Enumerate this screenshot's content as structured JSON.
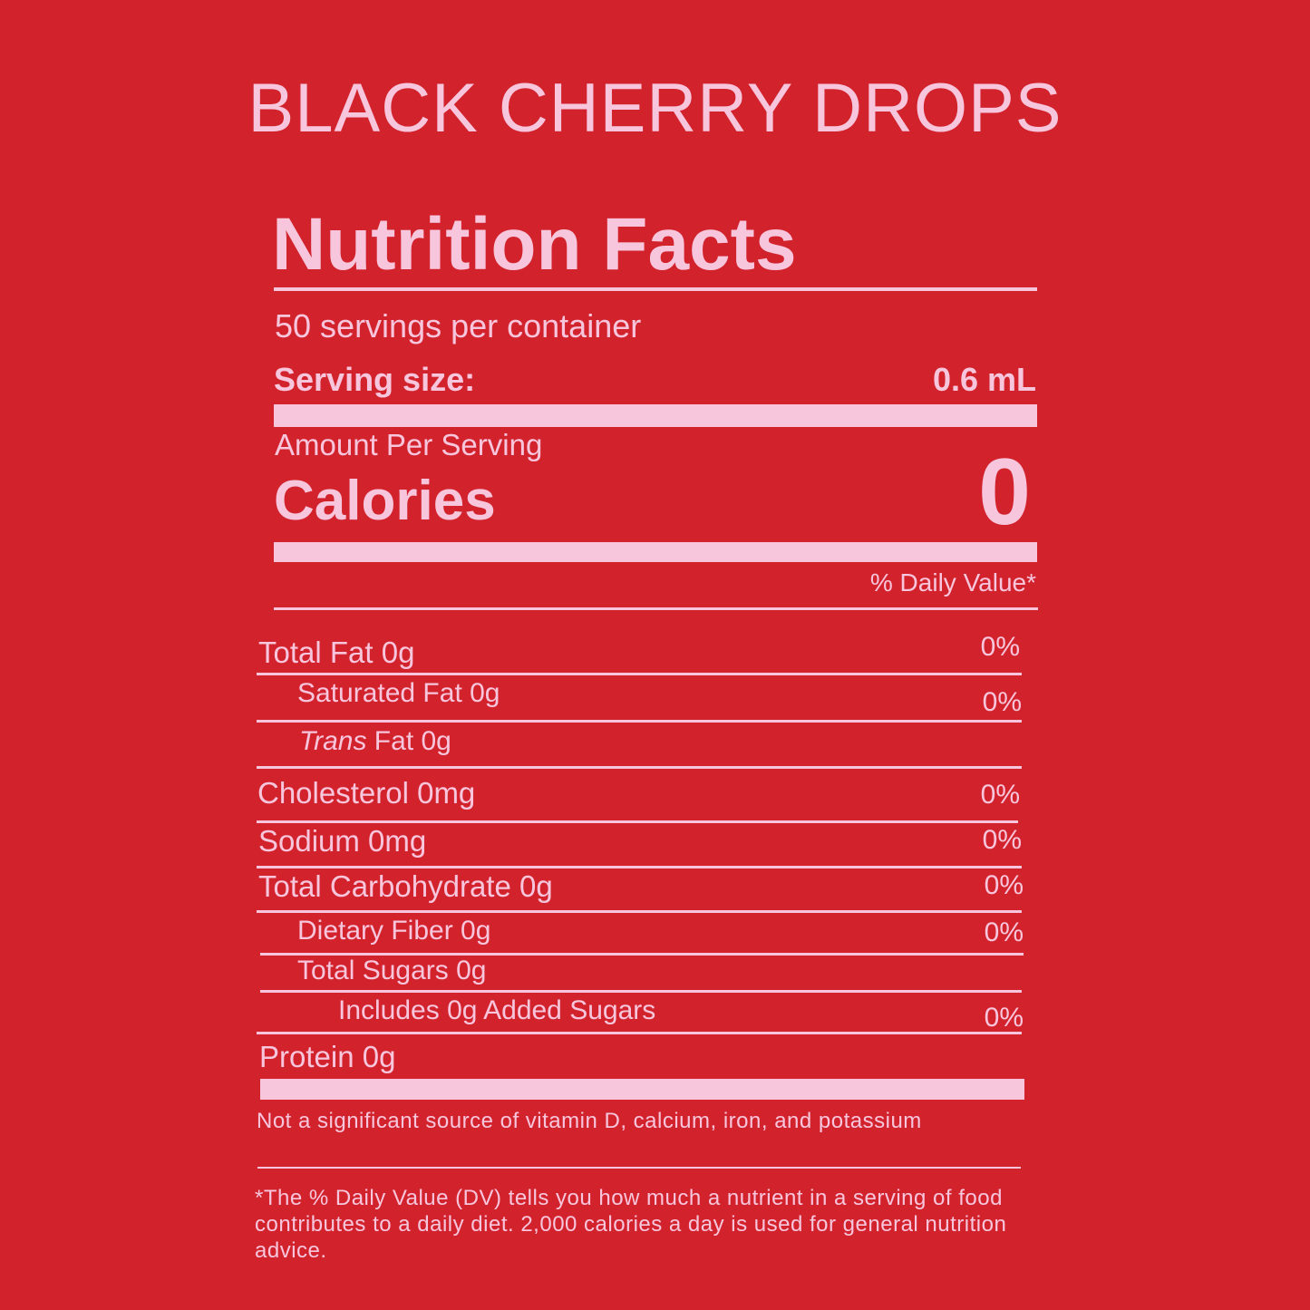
{
  "product": {
    "title": "BLACK CHERRY DROPS"
  },
  "label": {
    "title": "Nutrition Facts",
    "servings_per_container": "50 servings per container",
    "serving_size_label": "Serving size:",
    "serving_size_value": "0.6 mL",
    "amount_per_serving": "Amount Per Serving",
    "calories_label": "Calories",
    "calories_value": "0",
    "daily_value_header": "% Daily Value*"
  },
  "nutrients": [
    {
      "label": "Total Fat 0g",
      "dv": "0%"
    },
    {
      "label": "Saturated Fat 0g",
      "dv": "0%"
    },
    {
      "label_italic": "Trans",
      "label": " Fat 0g",
      "dv": ""
    },
    {
      "label": "Cholesterol 0mg",
      "dv": "0%"
    },
    {
      "label": "Sodium 0mg",
      "dv": "0%"
    },
    {
      "label": "Total Carbohydrate 0g",
      "dv": "0%"
    },
    {
      "label": "Dietary Fiber 0g",
      "dv": "0%"
    },
    {
      "label": "Total Sugars 0g",
      "dv": ""
    },
    {
      "label": "Includes 0g Added Sugars",
      "dv": "0%"
    },
    {
      "label": "Protein 0g",
      "dv": ""
    }
  ],
  "footnotes": {
    "vitamins": "Not a significant source of vitamin D, calcium, iron, and potassium",
    "daily_value": "*The % Daily Value (DV) tells you how much a nutrient in a serving of food contributes to a daily diet. 2,000 calories a day is used for general nutrition advice."
  },
  "colors": {
    "background": "#d2232d",
    "text": "#f7c6dc"
  }
}
